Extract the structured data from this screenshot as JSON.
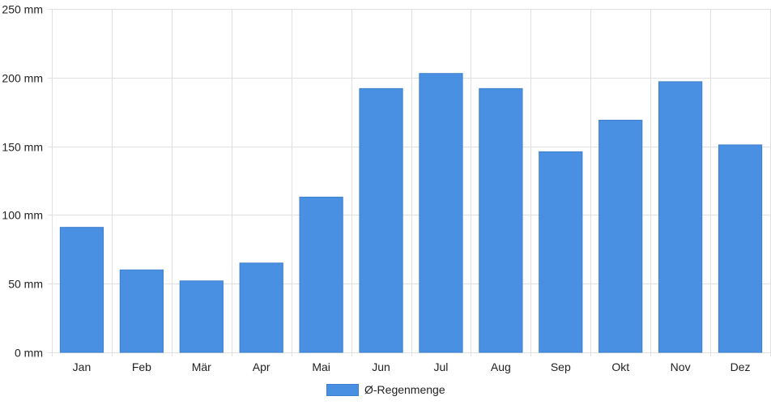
{
  "chart_data": {
    "type": "bar",
    "categories": [
      "Jan",
      "Feb",
      "Mär",
      "Apr",
      "Mai",
      "Jun",
      "Jul",
      "Aug",
      "Sep",
      "Okt",
      "Nov",
      "Dez"
    ],
    "series": [
      {
        "name": "Ø-Regenmenge",
        "values": [
          91,
          60,
          52,
          65,
          113,
          192,
          203,
          192,
          146,
          169,
          197,
          151
        ]
      }
    ],
    "ylim": [
      0,
      250
    ],
    "yticks": [
      0,
      50,
      100,
      150,
      200,
      250
    ],
    "ytick_labels": [
      "0 mm",
      "50 mm",
      "100 mm",
      "150 mm",
      "200 mm",
      "250 mm"
    ],
    "grid": true,
    "legend_position": "bottom-center",
    "colors": {
      "bar": "#4a90e2",
      "bar_border": "#3d7fce",
      "grid": "#e0e0e0"
    }
  }
}
